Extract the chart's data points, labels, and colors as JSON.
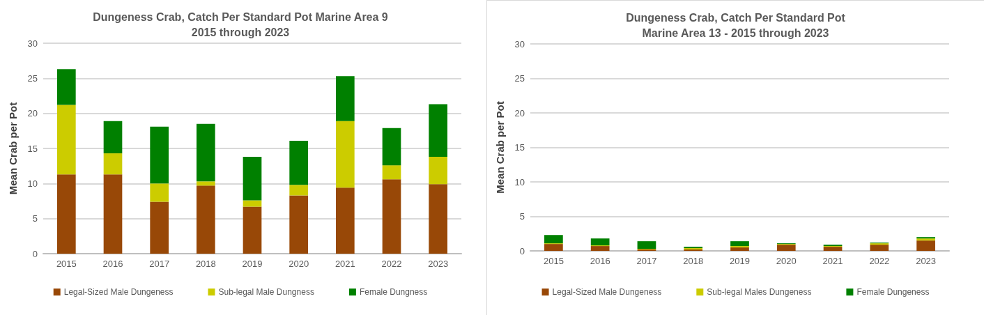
{
  "chart_data": [
    {
      "type": "bar",
      "title": "Dungeness Crab, Catch Per Standard Pot Marine Area 9\n2015 through 2023",
      "ylabel": "Mean Crab per Pot",
      "categories": [
        "2015",
        "2016",
        "2017",
        "2018",
        "2019",
        "2020",
        "2021",
        "2022",
        "2023"
      ],
      "stacked": true,
      "ylim": [
        0,
        30
      ],
      "yticks": [
        0,
        5,
        10,
        15,
        20,
        25,
        30
      ],
      "grid": "y",
      "legend": "bottom",
      "series": [
        {
          "name": "Legal-Sized Male Dungeness",
          "color": "#984807",
          "values": [
            11.3,
            11.3,
            7.4,
            9.7,
            6.7,
            8.3,
            9.4,
            10.6,
            9.9
          ]
        },
        {
          "name": "Sub-legal Male Dungness",
          "color": "#cccc00",
          "values": [
            9.9,
            3.0,
            2.6,
            0.6,
            0.9,
            1.5,
            9.5,
            2.0,
            3.9
          ]
        },
        {
          "name": "Female Dungness",
          "color": "#008000",
          "values": [
            5.1,
            4.6,
            8.1,
            8.2,
            6.2,
            6.3,
            6.4,
            5.3,
            7.5
          ]
        }
      ]
    },
    {
      "type": "bar",
      "title": "Dungeness Crab, Catch Per Standard Pot\nMarine Area 13 - 2015 through 2023",
      "ylabel": "Mean Crab per Pot",
      "categories": [
        "2015",
        "2016",
        "2017",
        "2018",
        "2019",
        "2020",
        "2021",
        "2022",
        "2023"
      ],
      "stacked": true,
      "ylim": [
        0,
        30
      ],
      "yticks": [
        0,
        5,
        10,
        15,
        20,
        25,
        30
      ],
      "grid": "y",
      "legend": "bottom",
      "series": [
        {
          "name": "Legal-Sized Male Dungeness",
          "color": "#984807",
          "values": [
            1.0,
            0.7,
            0.2,
            0.2,
            0.5,
            0.9,
            0.6,
            0.9,
            1.5
          ]
        },
        {
          "name": "Sub-legal Males Dungeness",
          "color": "#cccc00",
          "values": [
            0.1,
            0.1,
            0.1,
            0.2,
            0.2,
            0.1,
            0.1,
            0.2,
            0.3
          ]
        },
        {
          "name": "Female Dungeness",
          "color": "#008000",
          "values": [
            1.2,
            1.0,
            1.1,
            0.2,
            0.7,
            0.1,
            0.2,
            0.1,
            0.2
          ]
        }
      ]
    }
  ]
}
